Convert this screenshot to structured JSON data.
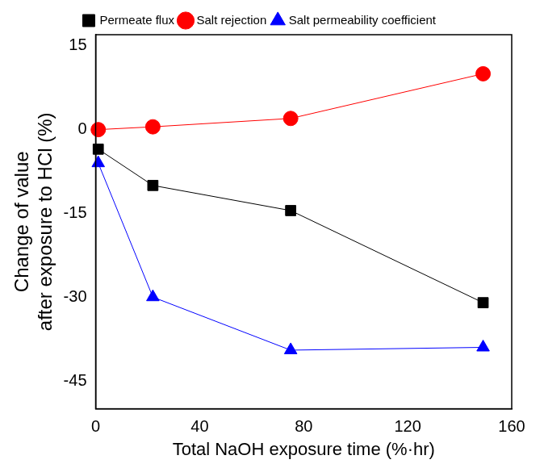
{
  "chart_data": {
    "type": "line",
    "x_label": "Total NaOH exposure time (%·hr)",
    "y_label": [
      "Change of value",
      "after exposure to HCl (%)"
    ],
    "xlim": [
      0,
      160
    ],
    "xticks": [
      0,
      40,
      80,
      120,
      160
    ],
    "ylim": [
      -50,
      17
    ],
    "yticks": [
      -45,
      -30,
      -15,
      0,
      15
    ],
    "grid": false,
    "legend": "top",
    "series": [
      {
        "name": "Permeate flux",
        "color": "#000000",
        "marker": "square",
        "line_style": "solid",
        "x": [
          1,
          22,
          75,
          149
        ],
        "values": [
          -3.5,
          -10,
          -14.5,
          -31
        ]
      },
      {
        "name": "Salt rejection",
        "color": "#ff0000",
        "marker": "circle",
        "line_style": "solid",
        "x": [
          1,
          22,
          75,
          149
        ],
        "values": [
          0,
          0.5,
          2,
          10
        ]
      },
      {
        "name": "Salt permeability coefficient",
        "color": "#0000ff",
        "marker": "triangle",
        "line_style": "solid",
        "x": [
          1,
          22,
          75,
          149
        ],
        "values": [
          -6,
          -30,
          -39.5,
          -39
        ]
      }
    ]
  }
}
